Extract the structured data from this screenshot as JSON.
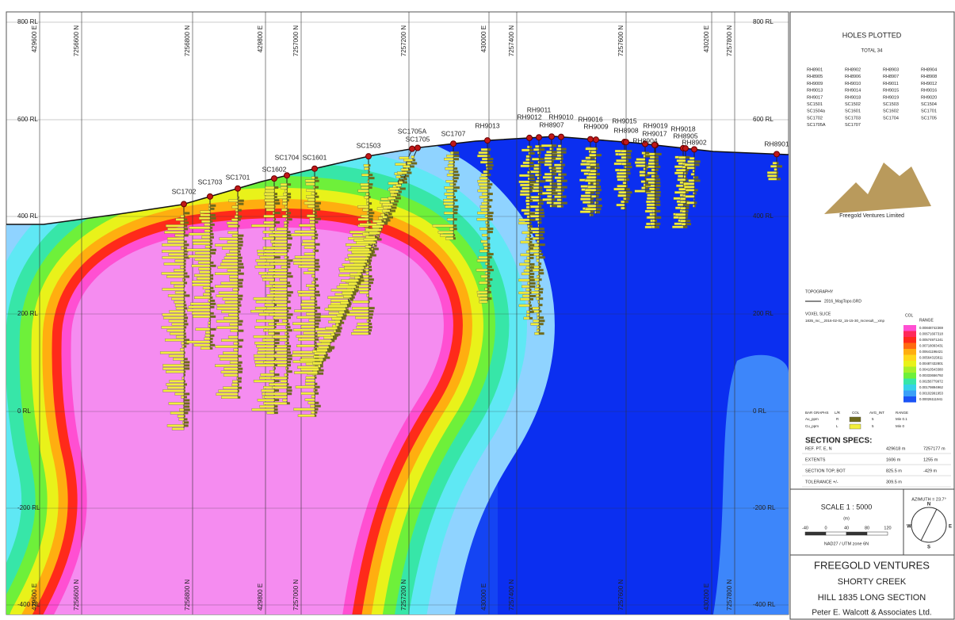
{
  "map": {
    "rl_labels": [
      "800 RL",
      "600 RL",
      "400 RL",
      "200 RL",
      "0 RL",
      "-200 RL",
      "-400 RL"
    ],
    "grid_labels": [
      "429600 E",
      "7256600 N",
      "7256800 N",
      "429800 E",
      "7257000 N",
      "7257200 N",
      "430000 E",
      "7257400 N",
      "7257600 N",
      "430200 E",
      "7257800 N"
    ],
    "holes": [
      "SC1702",
      "SC1703",
      "SC1701",
      "SC1602",
      "SC1704",
      "SC1601",
      "SC1503",
      "SC1705A",
      "SC1705",
      "SC1707",
      "RH9013",
      "RH9011",
      "RH9012",
      "RH9010",
      "RH8907",
      "RH9016",
      "RH9009",
      "RH9015",
      "RH8908",
      "RH9019",
      "RH9017",
      "RH8904",
      "RH9018",
      "RH8905",
      "RH8902",
      "RH8901"
    ]
  },
  "holes_plotted": {
    "title": "HOLES PLOTTED",
    "total": "TOTAL 34",
    "list": [
      "RH8901",
      "RH8902",
      "RH8903",
      "RH8904",
      "RH8905",
      "RH8906",
      "RH8907",
      "RH8908",
      "RH9009",
      "RH9010",
      "RH9011",
      "RH9012",
      "RH9013",
      "RH9014",
      "RH9015",
      "RH9016",
      "RH9017",
      "RH9018",
      "RH9019",
      "RH9020",
      "SC1501",
      "SC1502",
      "SC1503",
      "SC1504",
      "SC1504a",
      "SC1601",
      "SC1602",
      "SC1701",
      "SC1702",
      "SC1703",
      "SC1704",
      "SC1705",
      "SC1705A",
      "SC1707"
    ],
    "logo": "Freegold Ventures Limited"
  },
  "legend": {
    "topography": "TOPOGRAPHY",
    "topo_file": "2016_MagTopo.GRD",
    "voxel": "VOXEL SLICE",
    "voxel_file": "1835_mc__2016-02-02_15-15-30_mcresult__xmp",
    "col": "COL",
    "range": "RANGE",
    "ranges": [
      "0.00848742369",
      "0.00671667318",
      "0.00574971241",
      "0.00718093431",
      "0.00641196421",
      "0.00564315811",
      "0.00487432801",
      "0.00410543380",
      "0.00333656792",
      "0.00256779972",
      "0.00179894962",
      "0.00102991953",
      "0.00026111941"
    ],
    "bar_head": [
      "BAR GRAPHS",
      "L/R",
      "COL",
      "AVG_INT",
      "RANGE"
    ],
    "bar_rows": [
      [
        "Au_ppm",
        "R",
        "5",
        "Min 0.1"
      ],
      [
        "Cu_ppm",
        "L",
        "5",
        "Min 0"
      ]
    ]
  },
  "section_specs": {
    "title": "SECTION SPECS:",
    "rows": [
      [
        "REF. PT. E, N",
        "429618 m",
        "7257177 m"
      ],
      [
        "EXTENTS",
        "1606 m",
        "1255 m"
      ],
      [
        "SECTION TOP, BOT",
        "825.5 m",
        "-429 m"
      ],
      [
        "TOLERANCE +/-",
        "309.5 m",
        ""
      ]
    ]
  },
  "scale": {
    "title": "SCALE  1 : 5000",
    "unit": "(m)",
    "ticks": [
      "-40",
      "0",
      "40",
      "80",
      "120"
    ],
    "datum": "NAD27 / UTM zone 6N",
    "azimuth": "AZIMUTH = 23.7°",
    "compass": [
      "N",
      "E",
      "S",
      "W"
    ]
  },
  "title_block": [
    "FREEGOLD VENTURES",
    "SHORTY CREEK",
    "HILL 1835 LONG SECTION",
    "Peter E. Walcott & Associates Ltd."
  ]
}
